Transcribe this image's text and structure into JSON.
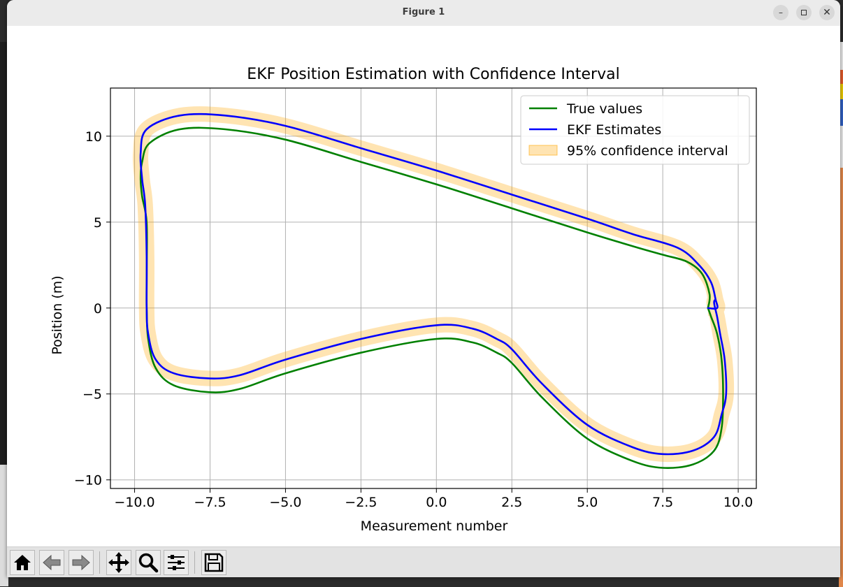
{
  "window": {
    "title": "Figure 1",
    "controls": [
      "minimize-icon",
      "maximize-icon",
      "close-icon"
    ]
  },
  "toolbar": {
    "buttons": [
      "home-icon",
      "back-icon",
      "forward-icon",
      "pan-icon",
      "zoom-icon",
      "configure-subplots-icon",
      "save-icon"
    ]
  },
  "chart_data": {
    "type": "line",
    "title": "EKF Position Estimation with Confidence Interval",
    "xlabel": "Measurement number",
    "ylabel": "Position (m)",
    "xlim": [
      -10.8,
      10.6
    ],
    "ylim": [
      -10.5,
      12.8
    ],
    "xticks": [
      -10.0,
      -7.5,
      -5.0,
      -2.5,
      0.0,
      2.5,
      5.0,
      7.5,
      10.0
    ],
    "xtick_labels": [
      "−10.0",
      "−7.5",
      "−5.0",
      "−2.5",
      "0.0",
      "2.5",
      "5.0",
      "7.5",
      "10.0"
    ],
    "yticks": [
      -10,
      -5,
      0,
      5,
      10
    ],
    "ytick_labels": [
      "−10",
      "−5",
      "0",
      "5",
      "10"
    ],
    "grid": true,
    "legend_position": "top-right",
    "series": [
      {
        "name": "True values",
        "color": "#008000",
        "x": [
          9.0,
          9.05,
          8.8,
          8.3,
          7.5,
          6.5,
          5.0,
          2.5,
          0.0,
          -2.5,
          -5.0,
          -7.0,
          -8.5,
          -9.5,
          -9.75,
          -9.8,
          -9.75,
          -9.6,
          -9.6,
          -9.6,
          -9.55,
          -9.3,
          -8.7,
          -7.5,
          -6.5,
          -5.0,
          -2.5,
          0.0,
          1.2,
          2.0,
          2.5,
          3.5,
          5.0,
          6.5,
          7.5,
          8.5,
          9.2,
          9.45,
          9.5,
          9.45,
          9.3,
          9.1,
          9.0
        ],
        "y": [
          0.0,
          0.8,
          2.0,
          2.7,
          3.1,
          3.6,
          4.4,
          5.8,
          7.2,
          8.5,
          9.8,
          10.4,
          10.4,
          9.6,
          8.5,
          7.5,
          6.5,
          5.0,
          2.0,
          0.0,
          -1.8,
          -3.5,
          -4.5,
          -4.9,
          -4.7,
          -3.8,
          -2.6,
          -1.8,
          -2.0,
          -2.6,
          -3.2,
          -5.2,
          -7.6,
          -8.9,
          -9.3,
          -9.1,
          -8.3,
          -7.0,
          -5.0,
          -3.0,
          -1.5,
          -0.5,
          0.0
        ]
      },
      {
        "name": "EKF Estimates",
        "color": "#0000ff",
        "x": [
          9.0,
          9.3,
          9.25,
          9.1,
          8.7,
          8.0,
          6.5,
          5.0,
          2.5,
          0.0,
          -2.5,
          -5.0,
          -7.0,
          -8.5,
          -9.6,
          -9.8,
          -9.75,
          -9.65,
          -9.6,
          -9.6,
          -9.55,
          -9.3,
          -8.7,
          -7.5,
          -6.5,
          -5.0,
          -2.5,
          0.0,
          1.2,
          2.0,
          2.5,
          3.5,
          5.0,
          6.5,
          7.5,
          8.5,
          9.2,
          9.45,
          9.6,
          9.55,
          9.4,
          9.3,
          9.2,
          9.25
        ],
        "y": [
          0.0,
          0.0,
          0.5,
          1.5,
          2.5,
          3.5,
          4.3,
          5.2,
          6.6,
          8.0,
          9.3,
          10.6,
          11.2,
          11.2,
          10.4,
          9.0,
          7.5,
          6.0,
          3.0,
          0.0,
          -1.5,
          -3.0,
          -3.8,
          -4.1,
          -3.9,
          -3.0,
          -1.8,
          -1.0,
          -1.2,
          -1.8,
          -2.4,
          -4.4,
          -6.8,
          -8.1,
          -8.5,
          -8.3,
          -7.5,
          -6.2,
          -5.0,
          -3.0,
          -1.5,
          -0.5,
          0.3,
          0.5
        ]
      },
      {
        "name": "95% confidence interval",
        "color": "#ffa500",
        "opacity": 0.3,
        "band_halfwidth": 0.45,
        "follows": "EKF Estimates"
      }
    ]
  }
}
